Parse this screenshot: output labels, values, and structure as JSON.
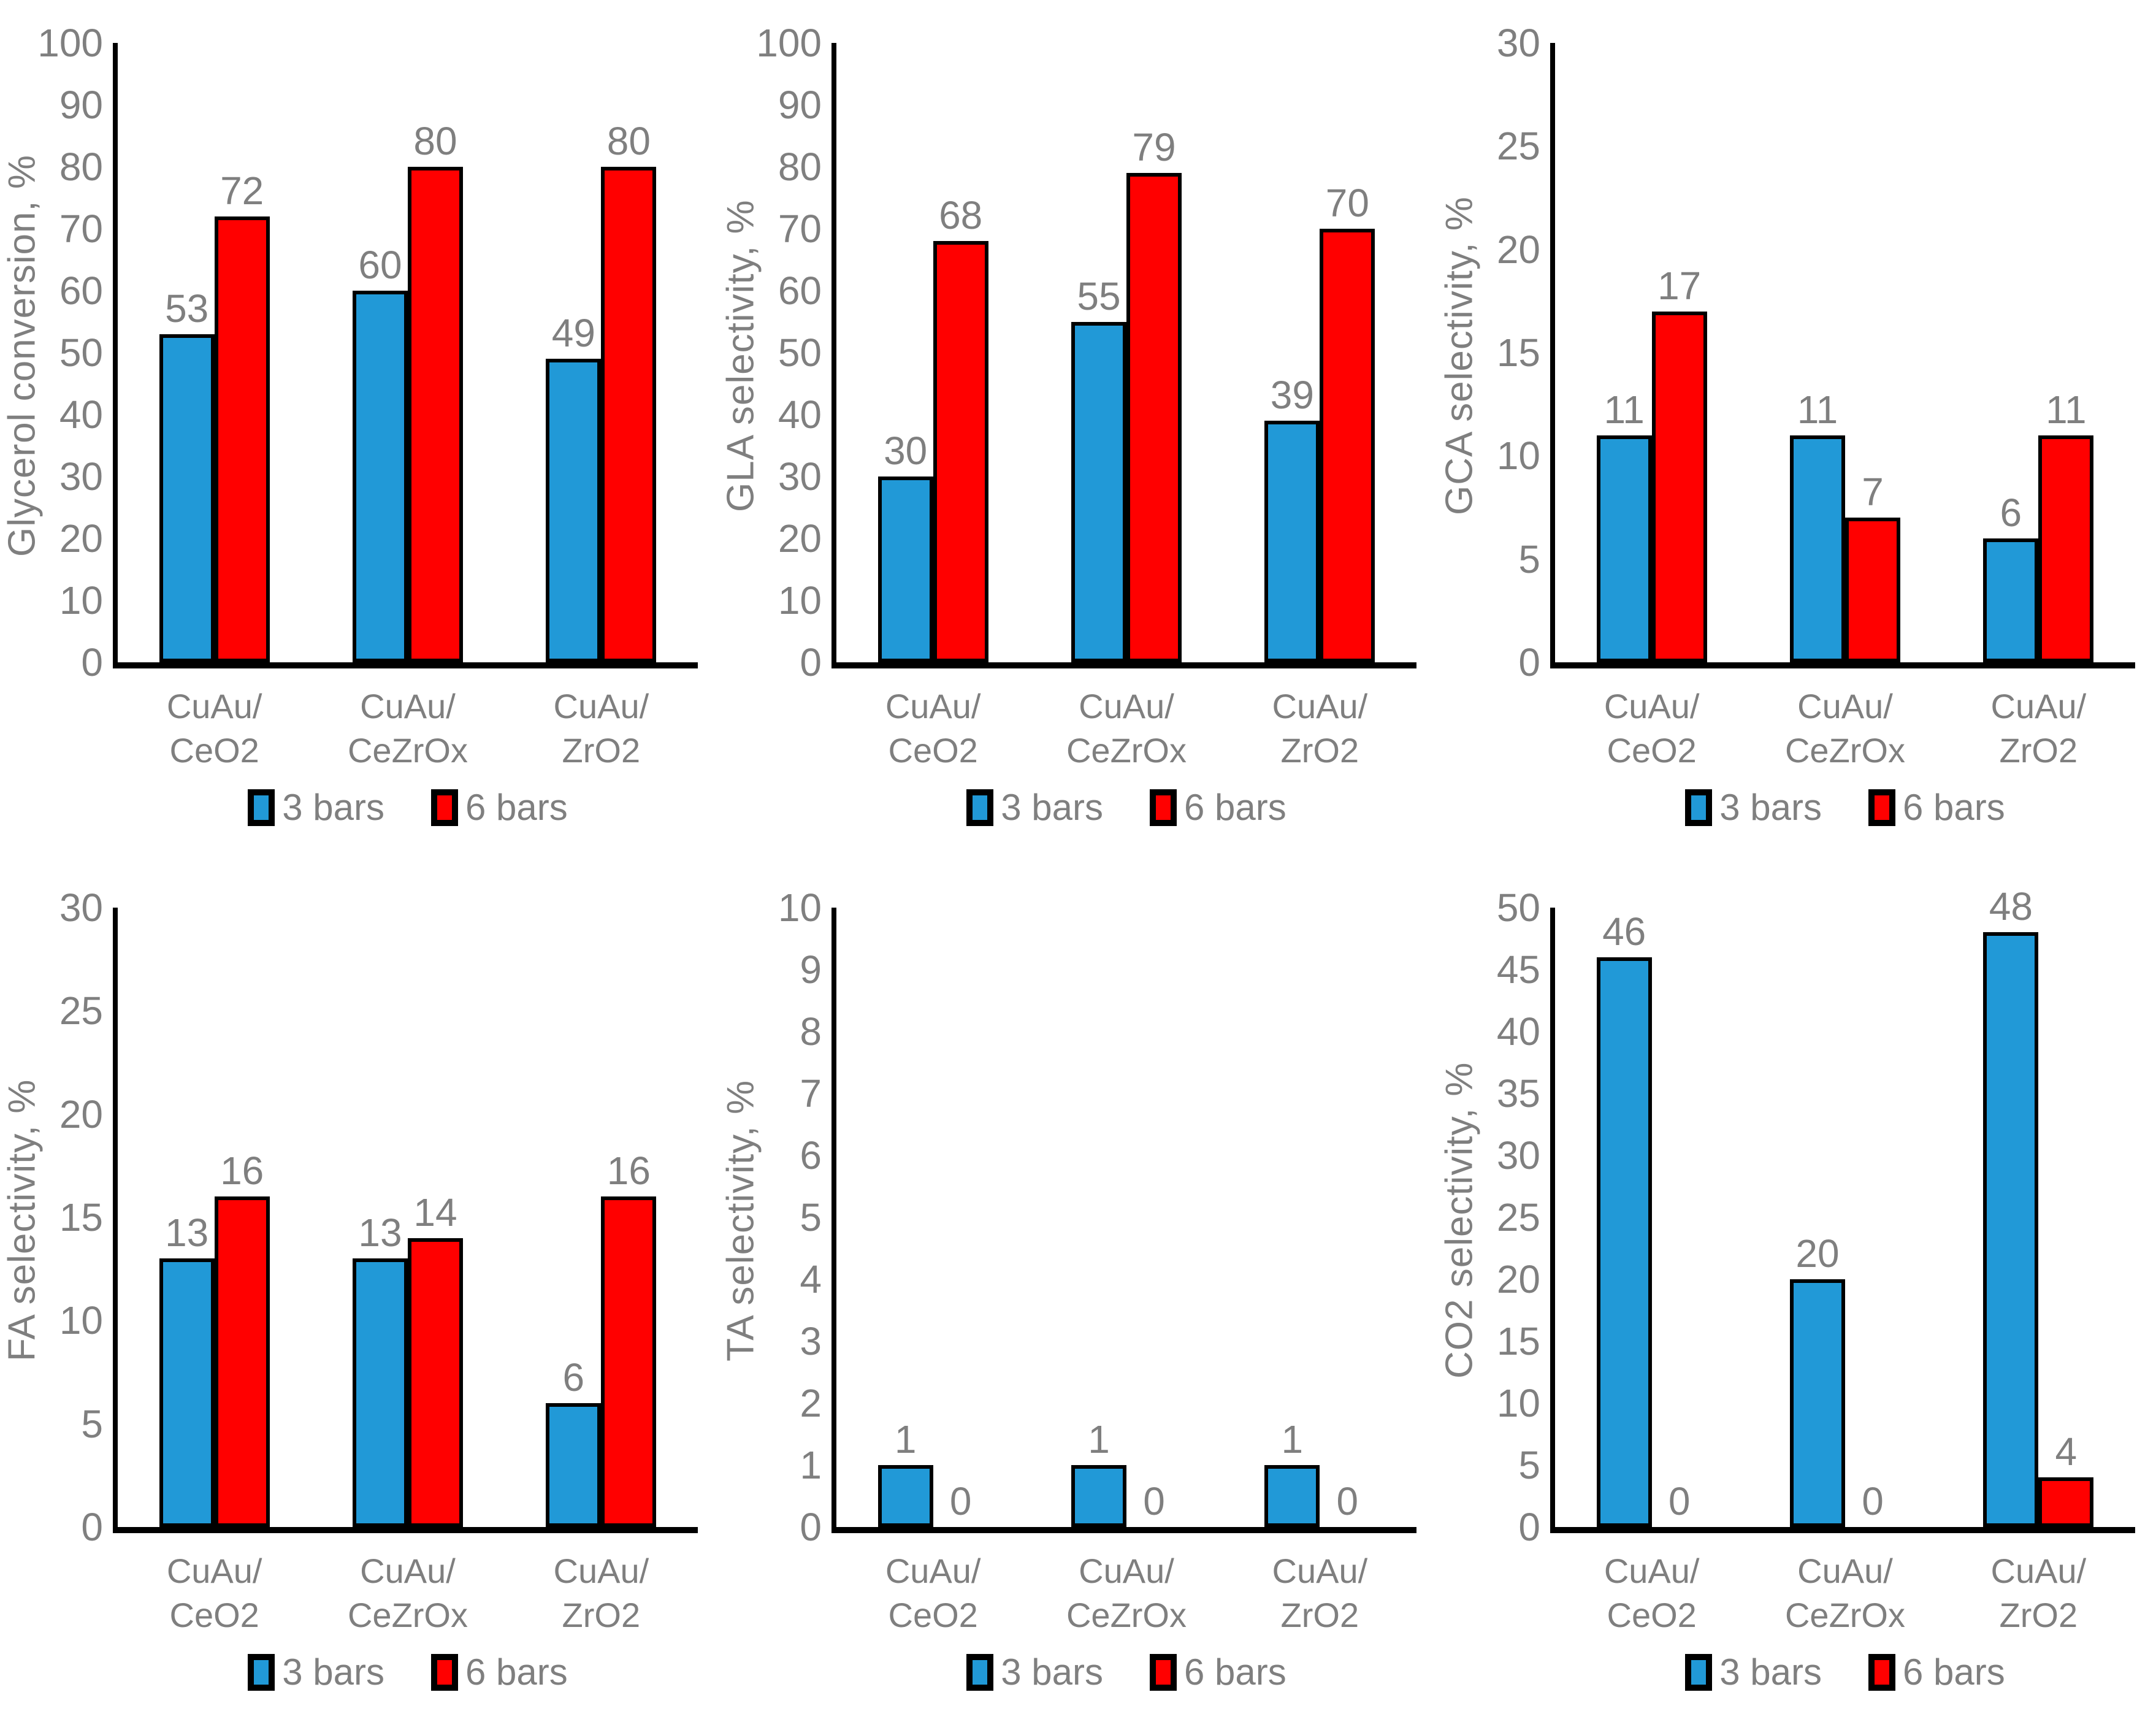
{
  "figure": {
    "background": "#FFFFFF",
    "text_color": "#7F7F7F",
    "axis_color": "#000000",
    "series_colors": {
      "blue": "#2199D7",
      "red": "#FF0000"
    }
  },
  "chart_data": [
    {
      "type": "bar",
      "title": "",
      "xlabel": "",
      "ylabel": "Glycerol conversion, %",
      "ylim": [
        0,
        100
      ],
      "ytick_step": 10,
      "grid": false,
      "legend_position": "bottom",
      "categories": [
        [
          "CuAu/",
          "CeO2"
        ],
        [
          "CuAu/",
          "CeZrOx"
        ],
        [
          "CuAu/",
          "ZrO2"
        ]
      ],
      "series": [
        {
          "name": "3 bars",
          "color": "#2199D7",
          "values": [
            53,
            60,
            49
          ]
        },
        {
          "name": "6 bars",
          "color": "#FF0000",
          "values": [
            72,
            80,
            80
          ]
        }
      ]
    },
    {
      "type": "bar",
      "title": "",
      "xlabel": "",
      "ylabel": "GLA selectivity, %",
      "ylim": [
        0,
        100
      ],
      "ytick_step": 10,
      "grid": false,
      "legend_position": "bottom",
      "categories": [
        [
          "CuAu/",
          "CeO2"
        ],
        [
          "CuAu/",
          "CeZrOx"
        ],
        [
          "CuAu/",
          "ZrO2"
        ]
      ],
      "series": [
        {
          "name": "3 bars",
          "color": "#2199D7",
          "values": [
            30,
            55,
            39
          ]
        },
        {
          "name": "6 bars",
          "color": "#FF0000",
          "values": [
            68,
            79,
            70
          ]
        }
      ]
    },
    {
      "type": "bar",
      "title": "",
      "xlabel": "",
      "ylabel": "GCA selectivity, %",
      "ylim": [
        0,
        30
      ],
      "ytick_step": 5,
      "grid": false,
      "legend_position": "bottom",
      "categories": [
        [
          "CuAu/",
          "CeO2"
        ],
        [
          "CuAu/",
          "CeZrOx"
        ],
        [
          "CuAu/",
          "ZrO2"
        ]
      ],
      "series": [
        {
          "name": "3 bars",
          "color": "#2199D7",
          "values": [
            11,
            11,
            6
          ]
        },
        {
          "name": "6 bars",
          "color": "#FF0000",
          "values": [
            17,
            7,
            11
          ]
        }
      ]
    },
    {
      "type": "bar",
      "title": "",
      "xlabel": "",
      "ylabel": "FA selectivity, %",
      "ylim": [
        0,
        30
      ],
      "ytick_step": 5,
      "grid": false,
      "legend_position": "bottom",
      "categories": [
        [
          "CuAu/",
          "CeO2"
        ],
        [
          "CuAu/",
          "CeZrOx"
        ],
        [
          "CuAu/",
          "ZrO2"
        ]
      ],
      "series": [
        {
          "name": "3 bars",
          "color": "#2199D7",
          "values": [
            13,
            13,
            6
          ]
        },
        {
          "name": "6 bars",
          "color": "#FF0000",
          "values": [
            16,
            14,
            16
          ]
        }
      ]
    },
    {
      "type": "bar",
      "title": "",
      "xlabel": "",
      "ylabel": "TA selectivity, %",
      "ylim": [
        0,
        10
      ],
      "ytick_step": 1,
      "grid": false,
      "legend_position": "bottom",
      "categories": [
        [
          "CuAu/",
          "CeO2"
        ],
        [
          "CuAu/",
          "CeZrOx"
        ],
        [
          "CuAu/",
          "ZrO2"
        ]
      ],
      "series": [
        {
          "name": "3 bars",
          "color": "#2199D7",
          "values": [
            1,
            1,
            1
          ]
        },
        {
          "name": "6 bars",
          "color": "#FF0000",
          "values": [
            0,
            0,
            0
          ]
        }
      ]
    },
    {
      "type": "bar",
      "title": "",
      "xlabel": "",
      "ylabel": "CO2 selectivity, %",
      "ylim": [
        0,
        50
      ],
      "ytick_step": 5,
      "grid": false,
      "legend_position": "bottom",
      "categories": [
        [
          "CuAu/",
          "CeO2"
        ],
        [
          "CuAu/",
          "CeZrOx"
        ],
        [
          "CuAu/",
          "ZrO2"
        ]
      ],
      "series": [
        {
          "name": "3 bars",
          "color": "#2199D7",
          "values": [
            46,
            20,
            48
          ]
        },
        {
          "name": "6 bars",
          "color": "#FF0000",
          "values": [
            0,
            0,
            4
          ]
        }
      ]
    }
  ]
}
